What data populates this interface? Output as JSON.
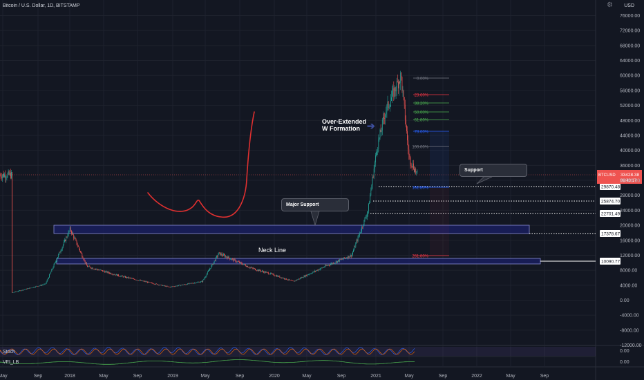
{
  "header": {
    "title": "Bitcoin / U.S. Dollar, 1D, BITSTAMP",
    "currency": "USD"
  },
  "price_scale": {
    "ticks": [
      "76000.00",
      "72000.00",
      "68000.00",
      "64000.00",
      "60000.00",
      "56000.00",
      "52000.00",
      "48000.00",
      "44000.00",
      "40000.00",
      "36000.00",
      "32000.00",
      "28000.00",
      "24000.00",
      "20000.00",
      "16000.00",
      "12000.00",
      "8000.00",
      "4000.00",
      "0.00",
      "-4000.00",
      "-8000.00",
      "-12000.00"
    ],
    "current_price": {
      "symbol": "BTCUSD",
      "value": "33428.38",
      "countdown": "09:43:17"
    },
    "level_labels": [
      "29870.48",
      "25874.70",
      "22701.49",
      "17378.67",
      "10090.77"
    ],
    "osc_ticks": [
      "0.00",
      "0.00"
    ]
  },
  "time_axis": [
    "May",
    "Sep",
    "2018",
    "May",
    "Sep",
    "2019",
    "May",
    "Sep",
    "2020",
    "May",
    "Sep",
    "2021",
    "May",
    "Sep",
    "2022",
    "May",
    "Sep"
  ],
  "annotations": {
    "over_extended": "Over-Extended\nW Formation",
    "neck_line": "Neck Line",
    "major_support": "Major Support",
    "support": "Support"
  },
  "fibonacci": {
    "levels": [
      "0.00%",
      "23.60%",
      "38.20%",
      "50.00%",
      "61.80%",
      "78.60%",
      "100.00%",
      "161.80%",
      "261.80%"
    ],
    "colors": [
      "#787b86",
      "#f23645",
      "#4caf50",
      "#4caf50",
      "#4caf50",
      "#2962ff",
      "#787b86",
      "#2962ff",
      "#f23645"
    ]
  },
  "indicators": {
    "stoch_label": "Stoch",
    "vfi_label": "VFI_LB"
  },
  "colors": {
    "up": "#26a69a",
    "down": "#ef5350",
    "zone": "#3a44b0",
    "background": "#131722"
  },
  "chart_data": {
    "type": "candlestick",
    "title": "Bitcoin / U.S. Dollar, 1D, BITSTAMP",
    "x": [
      "2017-05",
      "2017-09",
      "2017-12",
      "2018-02",
      "2018-06",
      "2018-12",
      "2019-04",
      "2019-06",
      "2019-10",
      "2019-12",
      "2020-03",
      "2020-07",
      "2020-10",
      "2020-12",
      "2021-01",
      "2021-02",
      "2021-04",
      "2021-05",
      "2021-06"
    ],
    "close": [
      2000,
      4300,
      19000,
      9000,
      6500,
      3500,
      5000,
      12500,
      8500,
      7200,
      5000,
      9200,
      12000,
      24000,
      40000,
      50000,
      60000,
      38000,
      33428
    ],
    "ylim": [
      -12000,
      78000
    ],
    "zones": [
      {
        "name": "Major Support",
        "range": [
          17378.67,
          19800
        ]
      },
      {
        "name": "Neck Line",
        "range": [
          10090.77,
          11300
        ]
      }
    ],
    "levels": [
      29870.48,
      25874.7,
      22701.49,
      17378.67,
      10090.77
    ],
    "fib_range": [
      58800,
      28800
    ]
  }
}
